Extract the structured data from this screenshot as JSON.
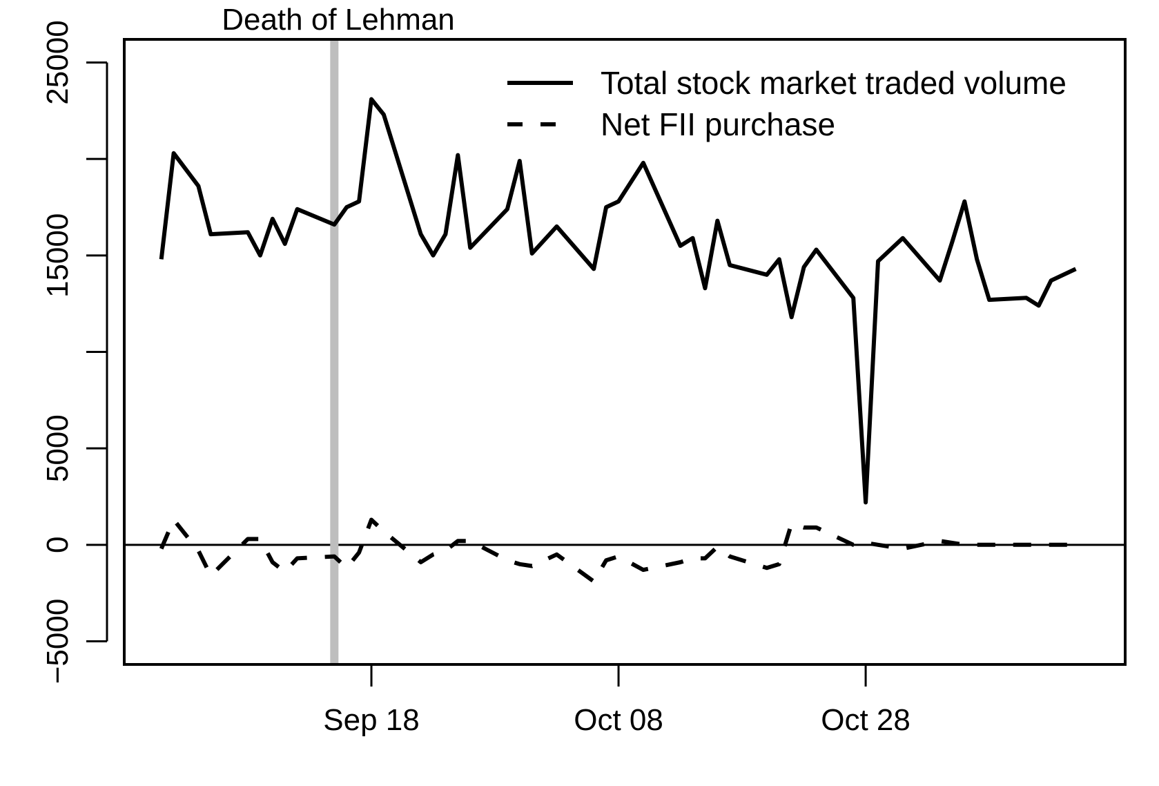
{
  "chart_data": {
    "type": "line",
    "x_start": "2008-09-01",
    "x_tick_labels": [
      {
        "label": "Sep 18",
        "date": "2008-09-18"
      },
      {
        "label": "Oct 08",
        "date": "2008-10-08"
      },
      {
        "label": "Oct 28",
        "date": "2008-10-28"
      }
    ],
    "y_ticks": [
      -5000,
      0,
      5000,
      15000,
      25000
    ],
    "y_tick_labels": [
      "−5000",
      "0",
      "5000",
      "15000",
      "25000"
    ],
    "ylim": [
      -6200,
      26200
    ],
    "xlim": [
      "2008-08-29",
      "2008-11-18"
    ],
    "annotation": {
      "label": "Death of Lehman",
      "date": "2008-09-15",
      "color": "#bebebe"
    },
    "zero_line": 0,
    "legend": {
      "position": "top-right"
    },
    "dates": [
      "2008-09-01",
      "2008-09-02",
      "2008-09-04",
      "2008-09-05",
      "2008-09-08",
      "2008-09-09",
      "2008-09-10",
      "2008-09-11",
      "2008-09-12",
      "2008-09-15",
      "2008-09-16",
      "2008-09-17",
      "2008-09-18",
      "2008-09-19",
      "2008-09-22",
      "2008-09-23",
      "2008-09-24",
      "2008-09-25",
      "2008-09-26",
      "2008-09-29",
      "2008-09-30",
      "2008-10-01",
      "2008-10-03",
      "2008-10-06",
      "2008-10-07",
      "2008-10-08",
      "2008-10-10",
      "2008-10-13",
      "2008-10-14",
      "2008-10-15",
      "2008-10-16",
      "2008-10-17",
      "2008-10-20",
      "2008-10-21",
      "2008-10-22",
      "2008-10-23",
      "2008-10-24",
      "2008-10-27",
      "2008-10-28",
      "2008-10-29",
      "2008-10-31",
      "2008-11-03",
      "2008-11-04",
      "2008-11-05",
      "2008-11-06",
      "2008-11-07",
      "2008-11-10",
      "2008-11-11",
      "2008-11-12",
      "2008-11-14"
    ],
    "series": [
      {
        "name": "Total stock market traded volume",
        "style": "solid",
        "color": "#000000",
        "values": [
          14800,
          20300,
          18600,
          16100,
          16200,
          15000,
          16900,
          15600,
          17400,
          16600,
          17500,
          17800,
          23100,
          22300,
          16100,
          15000,
          16100,
          20200,
          15400,
          17400,
          19900,
          15100,
          16500,
          14300,
          17500,
          17800,
          19800,
          15500,
          15900,
          13300,
          16800,
          14500,
          14000,
          14800,
          11800,
          14400,
          15300,
          12800,
          2200,
          14700,
          15900,
          13700,
          15700,
          17800,
          14800,
          12700,
          12800,
          12400,
          13700,
          14300
        ]
      },
      {
        "name": "Net FII purchase",
        "style": "dashed",
        "color": "#000000",
        "values": [
          -200,
          1300,
          -300,
          -1600,
          300,
          300,
          -900,
          -1400,
          -700,
          -600,
          -1200,
          -400,
          1300,
          700,
          -900,
          -500,
          -300,
          200,
          200,
          -800,
          -1000,
          -1100,
          -500,
          -1900,
          -800,
          -600,
          -1300,
          -900,
          -700,
          -700,
          -100,
          -600,
          -1200,
          -1000,
          1100,
          900,
          900,
          0,
          100,
          0,
          -200,
          200,
          100,
          0,
          0,
          0,
          0,
          0,
          0,
          0
        ]
      }
    ]
  }
}
